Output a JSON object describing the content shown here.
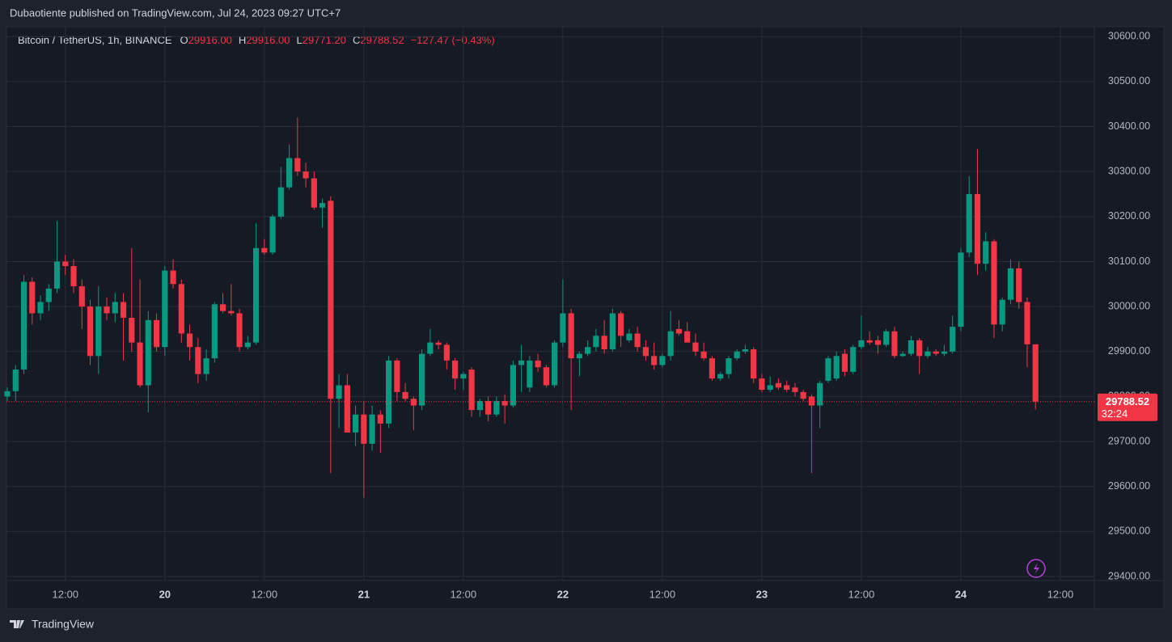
{
  "header": {
    "publisher": "Dubaotiente published on TradingView.com, Jul 24, 2023 09:27 UTC+7",
    "brand": "TradingView"
  },
  "chart_data": {
    "type": "candlestick",
    "legend": {
      "symbol": "Bitcoin / TetherUS, 1h, BINANCE",
      "items": [
        {
          "key": "O",
          "value": "29916.00"
        },
        {
          "key": "H",
          "value": "29916.00"
        },
        {
          "key": "L",
          "value": "29771.20"
        },
        {
          "key": "C",
          "value": "29788.52"
        }
      ],
      "change": "−127.47 (−0.43%)"
    },
    "up_color": "#089981",
    "down_color": "#f23645",
    "last_price_label": "29788.52",
    "countdown": "32:24",
    "xlim": [
      -0.1,
      131.1
    ],
    "xticks": [
      {
        "value": 7,
        "label": "12:00"
      },
      {
        "value": 19,
        "label": "20"
      },
      {
        "value": 31,
        "label": "12:00"
      },
      {
        "value": 43,
        "label": "21"
      },
      {
        "value": 55,
        "label": "12:00"
      },
      {
        "value": 67,
        "label": "22"
      },
      {
        "value": 79,
        "label": "12:00"
      },
      {
        "value": 91,
        "label": "23"
      },
      {
        "value": 103,
        "label": "12:00"
      },
      {
        "value": 115,
        "label": "24"
      },
      {
        "value": 127,
        "label": "12:00"
      }
    ],
    "ylim": [
      29391,
      30622
    ],
    "yticks": [
      {
        "value": 29400,
        "label": "29400.00"
      },
      {
        "value": 29500,
        "label": "29500.00"
      },
      {
        "value": 29600,
        "label": "29600.00"
      },
      {
        "value": 29700,
        "label": "29700.00"
      },
      {
        "value": 29800,
        "label": "29800.00"
      },
      {
        "value": 29900,
        "label": "29900.00"
      },
      {
        "value": 30000,
        "label": "30000.00"
      },
      {
        "value": 30100,
        "label": "30100.00"
      },
      {
        "value": 30200,
        "label": "30200.00"
      },
      {
        "value": 30300,
        "label": "30300.00"
      },
      {
        "value": 30400,
        "label": "30400.00"
      },
      {
        "value": 30500,
        "label": "30500.00"
      },
      {
        "value": 30600,
        "label": "30600.00"
      }
    ],
    "grid": true,
    "ohlc": [
      [
        29800,
        29820,
        29790,
        29812
      ],
      [
        29812,
        29870,
        29790,
        29860
      ],
      [
        29860,
        30070,
        29850,
        30055
      ],
      [
        30055,
        30065,
        29960,
        29985
      ],
      [
        29985,
        30025,
        29970,
        30010
      ],
      [
        30010,
        30050,
        29990,
        30040
      ],
      [
        30040,
        30190,
        30030,
        30100
      ],
      [
        30100,
        30115,
        30070,
        30090
      ],
      [
        30090,
        30105,
        30030,
        30045
      ],
      [
        30045,
        30060,
        29950,
        30000
      ],
      [
        30000,
        30015,
        29870,
        29890
      ],
      [
        29890,
        30045,
        29850,
        30000
      ],
      [
        30000,
        30020,
        29970,
        29985
      ],
      [
        29985,
        30030,
        29965,
        30010
      ],
      [
        30010,
        30030,
        29880,
        29975
      ],
      [
        29975,
        30130,
        29900,
        29920
      ],
      [
        29920,
        30060,
        29820,
        29825
      ],
      [
        29825,
        29990,
        29765,
        29970
      ],
      [
        29970,
        29985,
        29900,
        29910
      ],
      [
        29910,
        30090,
        29890,
        30080
      ],
      [
        30080,
        30105,
        30040,
        30050
      ],
      [
        30050,
        30060,
        29920,
        29940
      ],
      [
        29940,
        29960,
        29880,
        29910
      ],
      [
        29910,
        29930,
        29830,
        29850
      ],
      [
        29850,
        29905,
        29835,
        29885
      ],
      [
        29885,
        30010,
        29875,
        30005
      ],
      [
        30005,
        30030,
        29985,
        29990
      ],
      [
        29990,
        30050,
        29980,
        29985
      ],
      [
        29985,
        29995,
        29900,
        29910
      ],
      [
        29910,
        29935,
        29905,
        29920
      ],
      [
        29920,
        30185,
        29915,
        30130
      ],
      [
        30130,
        30150,
        30115,
        30120
      ],
      [
        30120,
        30205,
        30115,
        30200
      ],
      [
        30200,
        30310,
        30195,
        30265
      ],
      [
        30265,
        30360,
        30260,
        30330
      ],
      [
        30330,
        30420,
        30290,
        30300
      ],
      [
        30300,
        30320,
        30265,
        30285
      ],
      [
        30285,
        30300,
        30215,
        30220
      ],
      [
        30220,
        30240,
        30175,
        30230
      ],
      [
        30235,
        30245,
        29630,
        29795
      ],
      [
        29795,
        29850,
        29730,
        29825
      ],
      [
        29825,
        29850,
        29720,
        29720
      ],
      [
        29720,
        29780,
        29690,
        29760
      ],
      [
        29760,
        29790,
        29575,
        29695
      ],
      [
        29695,
        29780,
        29680,
        29760
      ],
      [
        29760,
        29770,
        29675,
        29740
      ],
      [
        29740,
        29890,
        29730,
        29880
      ],
      [
        29880,
        29885,
        29790,
        29810
      ],
      [
        29810,
        29830,
        29790,
        29795
      ],
      [
        29795,
        29800,
        29725,
        29780
      ],
      [
        29780,
        29905,
        29770,
        29895
      ],
      [
        29895,
        29950,
        29890,
        29920
      ],
      [
        29920,
        29925,
        29905,
        29915
      ],
      [
        29915,
        29920,
        29860,
        29880
      ],
      [
        29880,
        29885,
        29815,
        29840
      ],
      [
        29840,
        29855,
        29815,
        29850
      ],
      [
        29860,
        29865,
        29755,
        29770
      ],
      [
        29770,
        29795,
        29755,
        29790
      ],
      [
        29790,
        29800,
        29745,
        29760
      ],
      [
        29760,
        29800,
        29755,
        29790
      ],
      [
        29790,
        29805,
        29740,
        29780
      ],
      [
        29780,
        29880,
        29775,
        29870
      ],
      [
        29870,
        29915,
        29810,
        29880
      ],
      [
        29820,
        29890,
        29810,
        29880
      ],
      [
        29880,
        29895,
        29855,
        29865
      ],
      [
        29865,
        29870,
        29820,
        29825
      ],
      [
        29825,
        29925,
        29820,
        29920
      ],
      [
        29920,
        30060,
        29910,
        29985
      ],
      [
        29985,
        29995,
        29770,
        29885
      ],
      [
        29885,
        29900,
        29845,
        29895
      ],
      [
        29895,
        29925,
        29890,
        29910
      ],
      [
        29910,
        29950,
        29900,
        29935
      ],
      [
        29935,
        29970,
        29895,
        29905
      ],
      [
        29905,
        29995,
        29900,
        29985
      ],
      [
        29985,
        29990,
        29910,
        29935
      ],
      [
        29925,
        29950,
        29920,
        29940
      ],
      [
        29940,
        29955,
        29900,
        29910
      ],
      [
        29910,
        29925,
        29880,
        29890
      ],
      [
        29890,
        29920,
        29860,
        29870
      ],
      [
        29870,
        29895,
        29865,
        29890
      ],
      [
        29890,
        29990,
        29880,
        29945
      ],
      [
        29950,
        29970,
        29935,
        29940
      ],
      [
        29945,
        29965,
        29920,
        29920
      ],
      [
        29920,
        29940,
        29890,
        29900
      ],
      [
        29900,
        29920,
        29880,
        29885
      ],
      [
        29885,
        29890,
        29835,
        29840
      ],
      [
        29840,
        29855,
        29835,
        29850
      ],
      [
        29850,
        29890,
        29840,
        29885
      ],
      [
        29885,
        29905,
        29880,
        29900
      ],
      [
        29900,
        29915,
        29895,
        29905
      ],
      [
        29905,
        29910,
        29830,
        29840
      ],
      [
        29840,
        29850,
        29810,
        29815
      ],
      [
        29815,
        29845,
        29810,
        29825
      ],
      [
        29830,
        29840,
        29815,
        29820
      ],
      [
        29825,
        29835,
        29810,
        29815
      ],
      [
        29820,
        29830,
        29800,
        29810
      ],
      [
        29810,
        29815,
        29790,
        29795
      ],
      [
        29800,
        29805,
        29630,
        29780
      ],
      [
        29780,
        29835,
        29730,
        29830
      ],
      [
        29835,
        29890,
        29830,
        29885
      ],
      [
        29840,
        29900,
        29835,
        29890
      ],
      [
        29895,
        29905,
        29845,
        29855
      ],
      [
        29855,
        29915,
        29850,
        29910
      ],
      [
        29910,
        29980,
        29905,
        29925
      ],
      [
        29925,
        29945,
        29915,
        29920
      ],
      [
        29925,
        29935,
        29895,
        29915
      ],
      [
        29915,
        29950,
        29910,
        29945
      ],
      [
        29945,
        29955,
        29885,
        29890
      ],
      [
        29890,
        29900,
        29888,
        29895
      ],
      [
        29895,
        29935,
        29890,
        29925
      ],
      [
        29925,
        29930,
        29850,
        29890
      ],
      [
        29890,
        29910,
        29885,
        29900
      ],
      [
        29900,
        29905,
        29890,
        29895
      ],
      [
        29895,
        29915,
        29890,
        29900
      ],
      [
        29900,
        29980,
        29895,
        29955
      ],
      [
        29955,
        30130,
        29945,
        30120
      ],
      [
        30120,
        30290,
        30110,
        30250
      ],
      [
        30250,
        30350,
        30070,
        30095
      ],
      [
        30095,
        30165,
        30080,
        30145
      ],
      [
        30145,
        30150,
        29930,
        29960
      ],
      [
        29960,
        30020,
        29945,
        30015
      ],
      [
        30015,
        30105,
        30005,
        30085
      ],
      [
        30085,
        30100,
        29995,
        30010
      ],
      [
        30010,
        30020,
        29865,
        29916
      ],
      [
        29916,
        29916,
        29771.2,
        29788.52
      ]
    ]
  }
}
